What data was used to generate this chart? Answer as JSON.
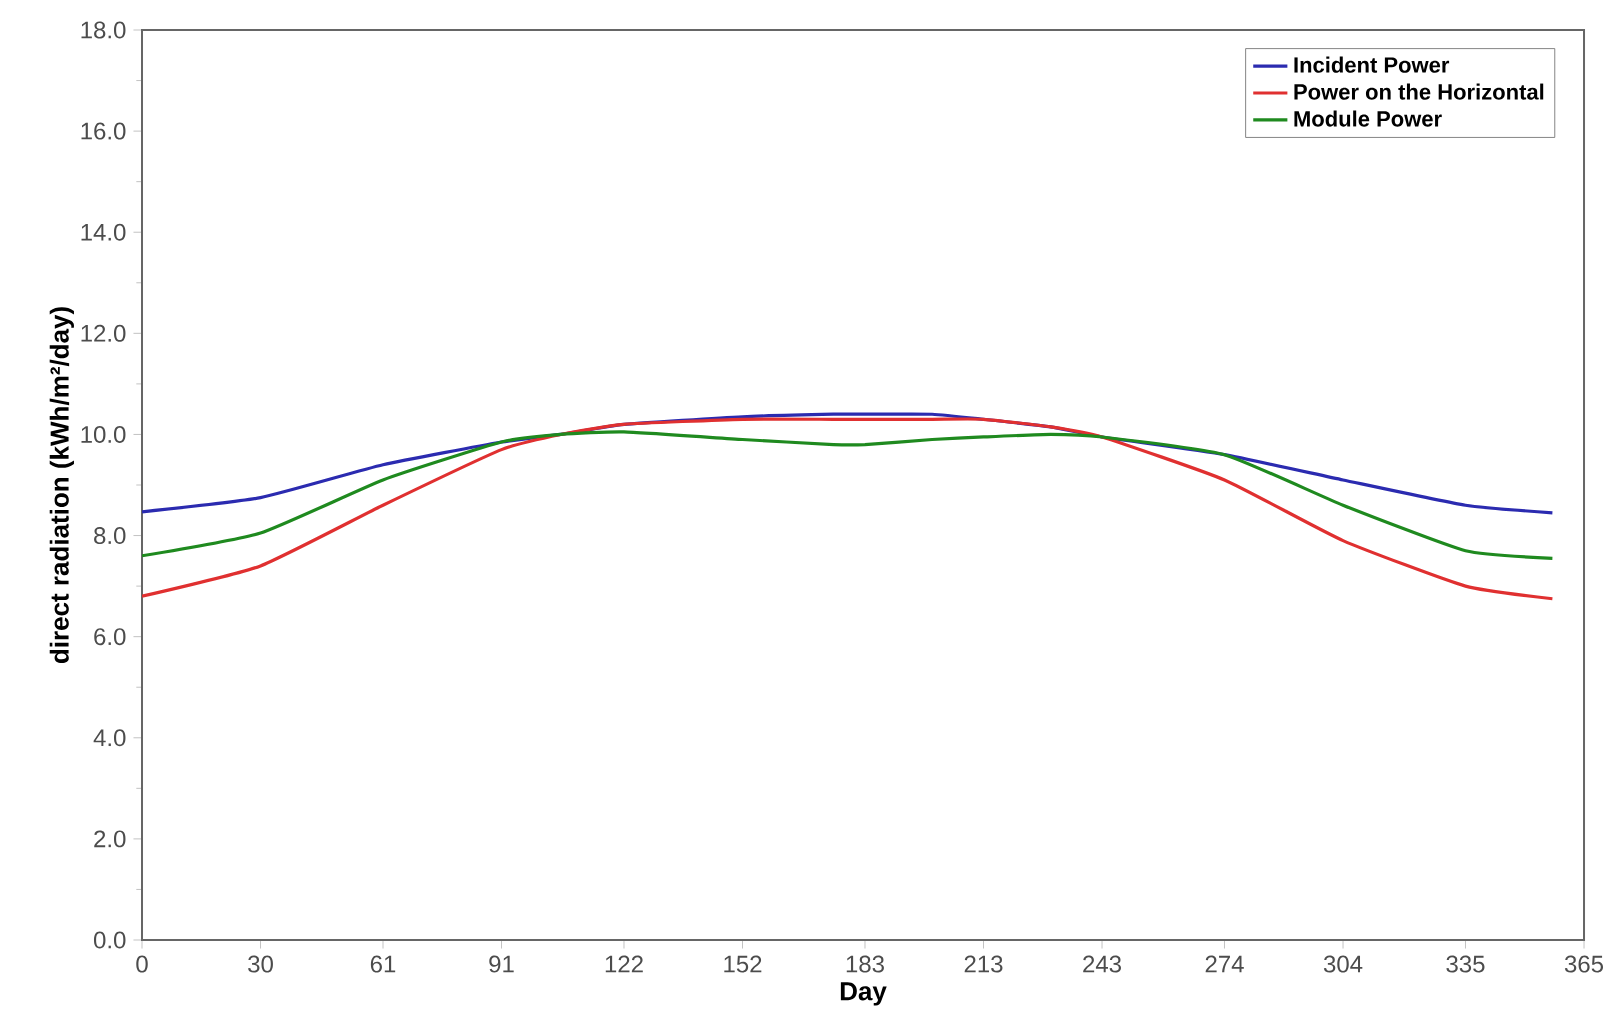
{
  "chart_data": {
    "type": "line",
    "xlabel": "Day",
    "ylabel": "direct radiation (kWh/m²/day)",
    "x": [
      0,
      30,
      61,
      91,
      106,
      122,
      152,
      175,
      183,
      200,
      213,
      230,
      243,
      274,
      304,
      335,
      357
    ],
    "series": [
      {
        "name": "Incident Power",
        "color": "#2b2bb0",
        "values": [
          8.47,
          8.75,
          9.4,
          9.85,
          10.0,
          10.2,
          10.35,
          10.4,
          10.4,
          10.4,
          10.3,
          10.15,
          9.95,
          9.6,
          9.1,
          8.6,
          8.45
        ]
      },
      {
        "name": "Power on the Horizontal",
        "color": "#e03030",
        "values": [
          6.8,
          7.4,
          8.6,
          9.7,
          10.0,
          10.2,
          10.3,
          10.3,
          10.3,
          10.3,
          10.3,
          10.15,
          9.95,
          9.1,
          7.9,
          7.0,
          6.75
        ]
      },
      {
        "name": "Module Power",
        "color": "#1f8a1f",
        "values": [
          7.6,
          8.05,
          9.1,
          9.85,
          10.0,
          10.05,
          9.9,
          9.8,
          9.8,
          9.9,
          9.95,
          10.0,
          9.95,
          9.6,
          8.6,
          7.7,
          7.55
        ]
      }
    ],
    "xlim": [
      0,
      365
    ],
    "xticks": [
      0,
      30,
      61,
      91,
      122,
      152,
      183,
      213,
      243,
      274,
      304,
      335,
      365
    ],
    "ylim": [
      0,
      18
    ],
    "yticks": [
      {
        "value": 0,
        "label": "0.0"
      },
      {
        "value": 2,
        "label": "2.0"
      },
      {
        "value": 4,
        "label": "4.0"
      },
      {
        "value": 6,
        "label": "6.0"
      },
      {
        "value": 8,
        "label": "8.0"
      },
      {
        "value": 10,
        "label": "10.0"
      },
      {
        "value": 12,
        "label": "12.0"
      },
      {
        "value": 14,
        "label": "14.0"
      },
      {
        "value": 16,
        "label": "16.0"
      },
      {
        "value": 18,
        "label": "18.0"
      }
    ],
    "legend": "top right",
    "grid": false,
    "marker": "none",
    "line_style": "solid"
  }
}
